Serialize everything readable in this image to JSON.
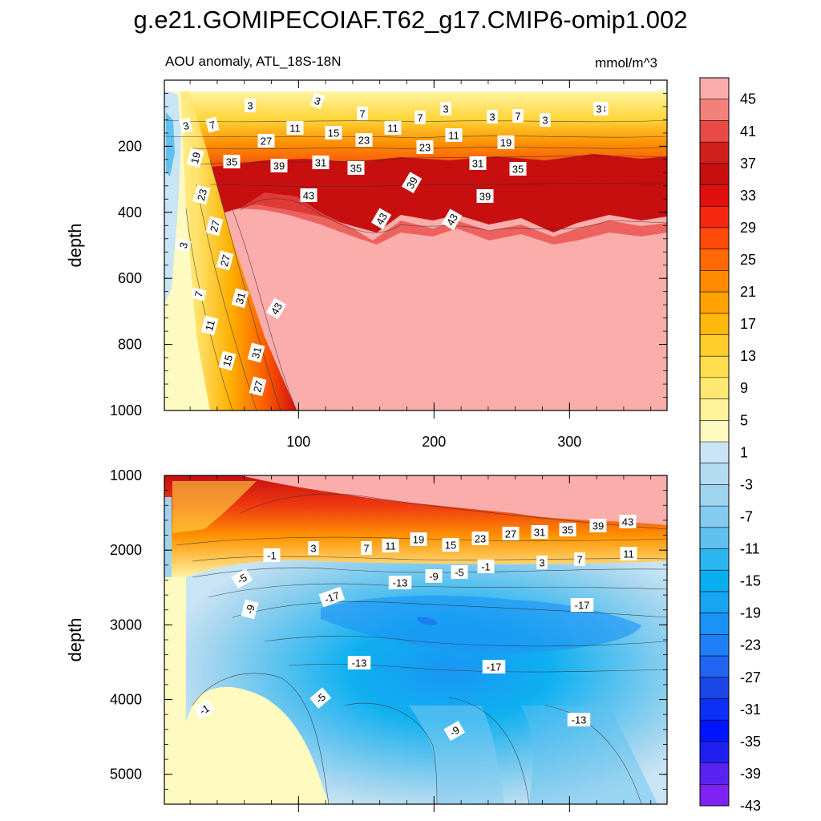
{
  "title": "g.e21.GOMIPECOIAF.T62_g17.CMIP6-omip1.002",
  "subtitle": "AOU anomaly, ATL_18S-18N",
  "units": "mmol/m^3",
  "chart_data": {
    "type": "heatmap",
    "variable": "AOU anomaly",
    "region": "ATL_18S-18N",
    "units": "mmol/m^3",
    "x_range": [
      1,
      372
    ],
    "x_ticks": [
      100,
      200,
      300
    ],
    "colorbar_labels": [
      "45",
      "41",
      "37",
      "33",
      "29",
      "25",
      "21",
      "17",
      "13",
      "9",
      "5",
      "1",
      "-3",
      "-7",
      "-11",
      "-15",
      "-19",
      "-23",
      "-27",
      "-31",
      "-35",
      "-39",
      "-43"
    ],
    "colorbar_colors": [
      "#fbadac",
      "#f4807b",
      "#e84a45",
      "#d11f1d",
      "#c80f0f",
      "#e0100c",
      "#f52710",
      "#ff4a0a",
      "#ff6a05",
      "#ff8a00",
      "#ffa202",
      "#ffb80d",
      "#ffcd2a",
      "#ffdd4c",
      "#ffe971",
      "#fff29b",
      "#fffabf",
      "#c9e4f4",
      "#b3dcf1",
      "#9fd4ee",
      "#84ccef",
      "#60c0ef",
      "#2cb6ef",
      "#09aef0",
      "#17a4f3",
      "#1b92f5",
      "#1f7ff6",
      "#2064f0",
      "#1b46e6",
      "#0e2ff5",
      "#0015ff",
      "#2020ee",
      "#5a22f0",
      "#8122f4"
    ],
    "panels": [
      {
        "name": "upper",
        "ylabel": "depth",
        "y_range": [
          0,
          1000
        ],
        "y_ticks": [
          200,
          400,
          600,
          800,
          1000
        ],
        "contour_labels": [
          "3",
          "3",
          "3",
          "3",
          "3",
          "3",
          "7",
          "7",
          "7",
          "7",
          "3",
          "3",
          "11",
          "15",
          "23",
          "11",
          "27",
          "11",
          "19",
          "23",
          "19",
          "35",
          "39",
          "31",
          "35",
          "39",
          "31",
          "35",
          "43",
          "39",
          "43",
          "43",
          "23",
          "27",
          "3",
          "27",
          "7",
          "31",
          "43",
          "11",
          "31",
          "15",
          "27"
        ]
      },
      {
        "name": "lower",
        "ylabel": "depth",
        "y_range": [
          1000,
          5400
        ],
        "y_ticks": [
          1000,
          2000,
          3000,
          4000,
          5000
        ],
        "contour_labels": [
          "-1",
          "3",
          "7",
          "11",
          "19",
          "15",
          "23",
          "27",
          "31",
          "35",
          "39",
          "43",
          "-5",
          "-13",
          "-9",
          "-5",
          "-1",
          "3",
          "7",
          "11",
          "-17",
          "-9",
          "-17",
          "-13",
          "-17",
          "-1",
          "-5",
          "-9",
          "-13"
        ]
      }
    ]
  }
}
